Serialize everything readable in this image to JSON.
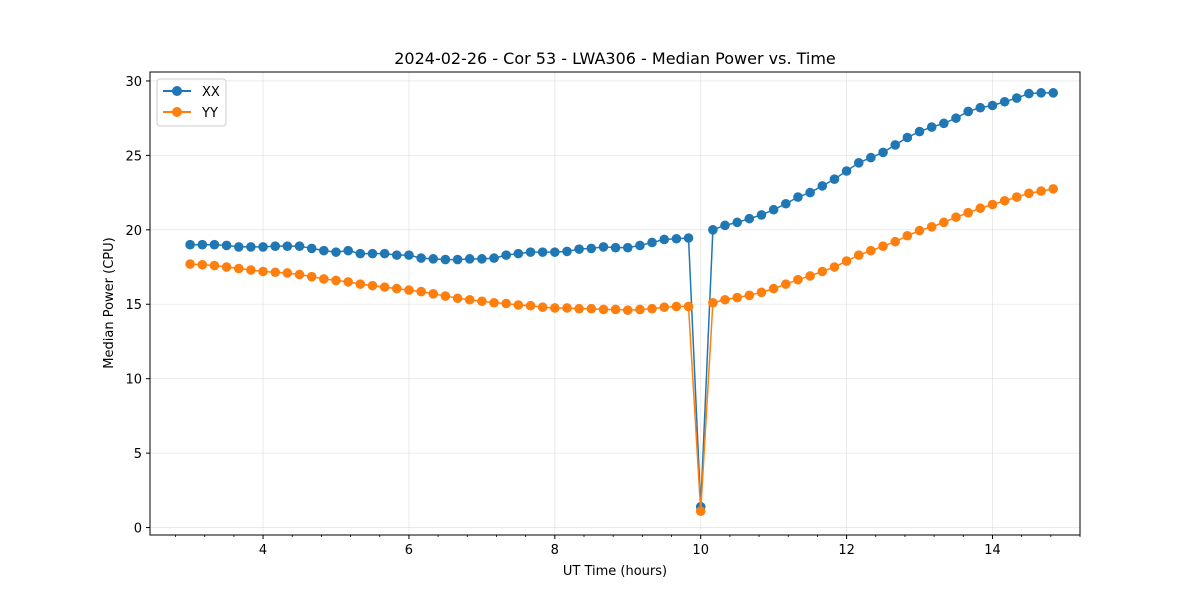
{
  "chart_data": {
    "type": "line",
    "title": "2024-02-26 - Cor 53 - LWA306 - Median Power vs. Time",
    "xlabel": "UT Time (hours)",
    "ylabel": "Median Power (CPU)",
    "xlim": [
      2.45,
      15.2
    ],
    "ylim": [
      -0.5,
      30.6
    ],
    "xticks": [
      4,
      6,
      8,
      10,
      12,
      14
    ],
    "xtick_labels": [
      "4",
      "6",
      "8",
      "10",
      "12",
      "14"
    ],
    "yticks": [
      0,
      5,
      10,
      15,
      20,
      25,
      30
    ],
    "ytick_labels": [
      "0",
      "5",
      "10",
      "15",
      "20",
      "25",
      "30"
    ],
    "grid": true,
    "legend_position": "top-left",
    "x": [
      3.0,
      3.167,
      3.333,
      3.5,
      3.667,
      3.833,
      4.0,
      4.167,
      4.333,
      4.5,
      4.667,
      4.833,
      5.0,
      5.167,
      5.333,
      5.5,
      5.667,
      5.833,
      6.0,
      6.167,
      6.333,
      6.5,
      6.667,
      6.833,
      7.0,
      7.167,
      7.333,
      7.5,
      7.667,
      7.833,
      8.0,
      8.167,
      8.333,
      8.5,
      8.667,
      8.833,
      9.0,
      9.167,
      9.333,
      9.5,
      9.667,
      9.833,
      10.0,
      10.167,
      10.333,
      10.5,
      10.667,
      10.833,
      11.0,
      11.167,
      11.333,
      11.5,
      11.667,
      11.833,
      12.0,
      12.167,
      12.333,
      12.5,
      12.667,
      12.833,
      13.0,
      13.167,
      13.333,
      13.5,
      13.667,
      13.833,
      14.0,
      14.167,
      14.333,
      14.5,
      14.667,
      14.833
    ],
    "series": [
      {
        "name": "XX",
        "color": "#1f77b4",
        "values": [
          19.0,
          19.0,
          19.0,
          18.95,
          18.85,
          18.85,
          18.85,
          18.9,
          18.9,
          18.9,
          18.75,
          18.6,
          18.5,
          18.6,
          18.4,
          18.4,
          18.4,
          18.3,
          18.3,
          18.1,
          18.05,
          18.0,
          18.0,
          18.05,
          18.05,
          18.1,
          18.3,
          18.4,
          18.5,
          18.5,
          18.5,
          18.55,
          18.7,
          18.75,
          18.85,
          18.8,
          18.8,
          18.95,
          19.15,
          19.35,
          19.4,
          19.45,
          1.4,
          20.0,
          20.3,
          20.5,
          20.75,
          21.0,
          21.35,
          21.75,
          22.2,
          22.5,
          22.95,
          23.4,
          23.95,
          24.5,
          24.85,
          25.2,
          25.7,
          26.2,
          26.6,
          26.9,
          27.15,
          27.5,
          27.95,
          28.2,
          28.35,
          28.6,
          28.85,
          29.15,
          29.2,
          29.2
        ]
      },
      {
        "name": "YY",
        "color": "#ff7f0e",
        "values": [
          17.7,
          17.65,
          17.6,
          17.5,
          17.4,
          17.3,
          17.2,
          17.15,
          17.1,
          17.0,
          16.85,
          16.7,
          16.6,
          16.5,
          16.35,
          16.25,
          16.15,
          16.05,
          15.95,
          15.85,
          15.7,
          15.55,
          15.4,
          15.3,
          15.2,
          15.1,
          15.05,
          14.95,
          14.9,
          14.8,
          14.75,
          14.75,
          14.7,
          14.7,
          14.65,
          14.65,
          14.6,
          14.65,
          14.7,
          14.8,
          14.85,
          14.85,
          1.1,
          15.1,
          15.3,
          15.45,
          15.6,
          15.8,
          16.05,
          16.35,
          16.65,
          16.9,
          17.2,
          17.5,
          17.9,
          18.3,
          18.6,
          18.9,
          19.2,
          19.6,
          19.95,
          20.2,
          20.5,
          20.85,
          21.15,
          21.45,
          21.7,
          21.95,
          22.2,
          22.45,
          22.6,
          22.75
        ]
      }
    ]
  }
}
